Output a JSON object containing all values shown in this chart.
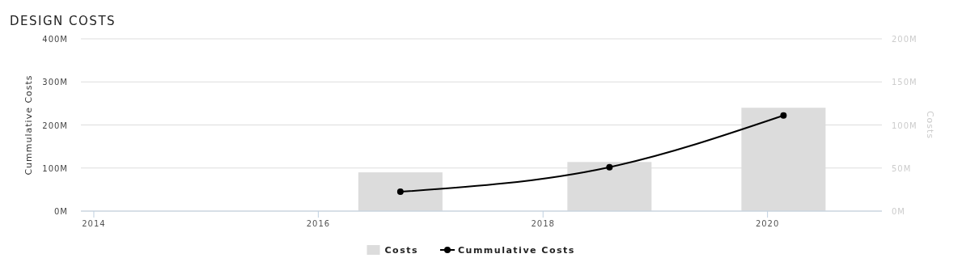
{
  "chart_data": {
    "type": "bar",
    "title": "DESIGN COSTS",
    "ylabel": "Cummulative Costs",
    "y2label": "Costs",
    "xlim": [
      "2013-11-20",
      "2021-01-07"
    ],
    "xticks": [
      "2014",
      "2016",
      "2018",
      "2020"
    ],
    "ylim": [
      0,
      400
    ],
    "yticks": [
      {
        "value": 0,
        "label": "0M"
      },
      {
        "value": 100,
        "label": "100M"
      },
      {
        "value": 200,
        "label": "200M"
      },
      {
        "value": 300,
        "label": "300M"
      },
      {
        "value": 400,
        "label": "400M"
      }
    ],
    "y2lim": [
      0,
      200
    ],
    "y2ticks": [
      {
        "value": 0,
        "label": "0M"
      },
      {
        "value": 50,
        "label": "50M"
      },
      {
        "value": 100,
        "label": "100M"
      },
      {
        "value": 150,
        "label": "150M"
      },
      {
        "value": 200,
        "label": "200M"
      }
    ],
    "x": [
      "2016-09-24",
      "2018-08-05",
      "2020-02-22"
    ],
    "series": [
      {
        "name": "Costs",
        "axis": "y2",
        "color": "#dcdcdc",
        "values": [
          45,
          57,
          120
        ]
      },
      {
        "name": "Cummulative Costs",
        "type": "line",
        "color": "#000000",
        "marker": "circle",
        "values": [
          45,
          102,
          222
        ]
      }
    ],
    "grid": "y",
    "legend": "bottom"
  }
}
